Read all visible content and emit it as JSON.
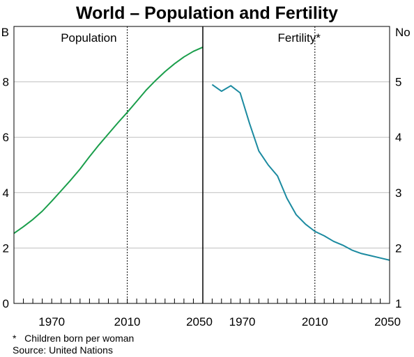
{
  "title": "World – Population and Fertility",
  "footnote": "*   Children born per woman",
  "source": "Source: United Nations",
  "chart_data": [
    {
      "type": "line",
      "panel_label": "Population",
      "unit_label": "B",
      "xlim": [
        1950,
        2050
      ],
      "ylim": [
        0,
        10
      ],
      "yticks": [
        0,
        2,
        4,
        6,
        8
      ],
      "xtick_labels": [
        1970,
        2010,
        2050
      ],
      "reference_line_x": 2010,
      "color": "#1a9e4b",
      "series": [
        {
          "x": [
            1950,
            1955,
            1960,
            1965,
            1970,
            1975,
            1980,
            1985,
            1990,
            1995,
            2000,
            2005,
            2010,
            2015,
            2020,
            2025,
            2030,
            2035,
            2040,
            2045,
            2050
          ],
          "values": [
            2.53,
            2.77,
            3.03,
            3.33,
            3.69,
            4.07,
            4.45,
            4.85,
            5.3,
            5.72,
            6.12,
            6.52,
            6.9,
            7.3,
            7.7,
            8.05,
            8.37,
            8.65,
            8.9,
            9.1,
            9.25
          ]
        }
      ]
    },
    {
      "type": "line",
      "panel_label": "Fertility*",
      "unit_label": "No",
      "xlim": [
        1950,
        2050
      ],
      "ylim": [
        1,
        6
      ],
      "yticks": [
        1,
        2,
        3,
        4,
        5
      ],
      "xtick_labels": [
        1970,
        2010,
        2050
      ],
      "reference_line_x": 2010,
      "color": "#1b8aa0",
      "series": [
        {
          "x": [
            1955,
            1960,
            1965,
            1970,
            1975,
            1980,
            1985,
            1990,
            1995,
            2000,
            2005,
            2010,
            2015,
            2020,
            2025,
            2030,
            2035,
            2040,
            2045,
            2050
          ],
          "values": [
            4.95,
            4.83,
            4.93,
            4.8,
            4.25,
            3.75,
            3.5,
            3.3,
            2.9,
            2.6,
            2.43,
            2.3,
            2.22,
            2.12,
            2.05,
            1.96,
            1.9,
            1.86,
            1.82,
            1.78
          ]
        }
      ]
    }
  ]
}
